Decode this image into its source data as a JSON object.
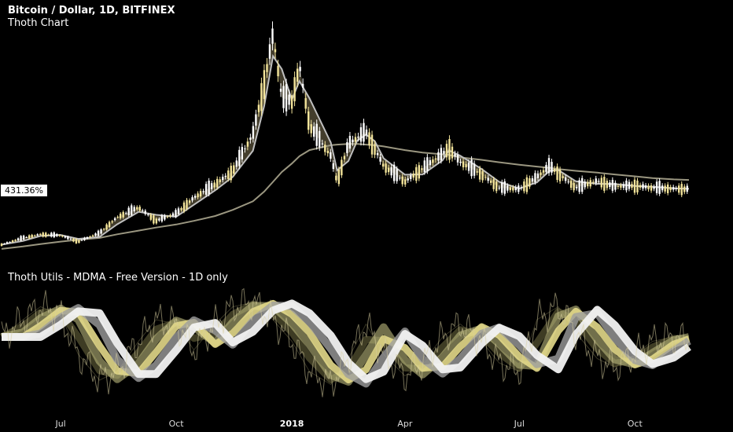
{
  "header": {
    "title": "Bitcoin / Dollar, 1D, BITFINEX",
    "subtitle": "Thoth Chart"
  },
  "indicator": {
    "title": "Thoth Utils - MDMA - Free Version - 1D only"
  },
  "price_label": "431.36%",
  "chart_data": [
    {
      "type": "line",
      "title": "Bitcoin / Dollar, 1D, BITFINEX",
      "subtitle": "Thoth Chart",
      "x": [
        "2017-05-15",
        "2017-06-01",
        "2017-06-15",
        "2017-07-01",
        "2017-07-15",
        "2017-08-01",
        "2017-08-15",
        "2017-09-01",
        "2017-09-15",
        "2017-10-01",
        "2017-10-15",
        "2017-11-01",
        "2017-11-15",
        "2017-12-01",
        "2017-12-10",
        "2017-12-17",
        "2017-12-24",
        "2018-01-01",
        "2018-01-07",
        "2018-01-15",
        "2018-02-01",
        "2018-02-06",
        "2018-02-15",
        "2018-02-22",
        "2018-03-01",
        "2018-03-08",
        "2018-03-15",
        "2018-04-01",
        "2018-04-15",
        "2018-05-01",
        "2018-05-06",
        "2018-05-15",
        "2018-06-01",
        "2018-06-15",
        "2018-07-01",
        "2018-07-15",
        "2018-07-25",
        "2018-08-01",
        "2018-08-15",
        "2018-09-01",
        "2018-09-15",
        "2018-10-01",
        "2018-10-15",
        "2018-11-01",
        "2018-11-13"
      ],
      "series": [
        {
          "name": "",
          "values": [
            1750,
            2300,
            2600,
            2500,
            2000,
            2700,
            4000,
            4800,
            3700,
            4300,
            5600,
            6700,
            7800,
            10800,
            15000,
            19000,
            13800,
            13500,
            16500,
            11500,
            9000,
            6900,
            10000,
            10500,
            11000,
            9600,
            8200,
            6900,
            8000,
            9200,
            9700,
            8500,
            7500,
            6400,
            6300,
            7300,
            8200,
            7600,
            6400,
            7000,
            6500,
            6600,
            6400,
            6350,
            6300
          ]
        },
        {
          "name": "",
          "values": [
            1400,
            1600,
            1800,
            2000,
            2150,
            2300,
            2600,
            2900,
            3150,
            3400,
            3700,
            4100,
            4600,
            5300,
            6100,
            6900,
            7700,
            8400,
            9000,
            9500,
            9900,
            9950,
            10000,
            10000,
            9950,
            9900,
            9800,
            9500,
            9300,
            9150,
            9100,
            8900,
            8700,
            8500,
            8300,
            8150,
            8050,
            7950,
            7800,
            7650,
            7500,
            7350,
            7200,
            7100,
            7050
          ]
        }
      ],
      "ylabel": "",
      "xlabel": ""
    },
    {
      "type": "area",
      "title": "Thoth Utils - MDMA - Free Version - 1D only",
      "x": [
        "2017-05-15",
        "2017-06-01",
        "2017-06-15",
        "2017-07-01",
        "2017-07-15",
        "2017-08-01",
        "2017-08-15",
        "2017-09-01",
        "2017-09-15",
        "2017-10-01",
        "2017-10-15",
        "2017-11-01",
        "2017-11-15",
        "2017-12-01",
        "2017-12-17",
        "2018-01-01",
        "2018-01-15",
        "2018-02-01",
        "2018-02-15",
        "2018-03-01",
        "2018-03-15",
        "2018-04-01",
        "2018-04-15",
        "2018-05-01",
        "2018-05-15",
        "2018-06-01",
        "2018-06-15",
        "2018-07-01",
        "2018-07-15",
        "2018-08-01",
        "2018-08-15",
        "2018-09-01",
        "2018-09-15",
        "2018-10-01",
        "2018-10-15",
        "2018-11-01",
        "2018-11-13"
      ],
      "series": [
        {
          "name": "",
          "values": [
            0.2,
            0.6,
            0.9,
            0.7,
            -0.2,
            -0.8,
            -0.6,
            0.1,
            0.6,
            0.5,
            -0.1,
            0.5,
            0.9,
            1.0,
            0.6,
            0.1,
            -0.6,
            -0.9,
            -0.3,
            0.5,
            -0.2,
            -0.7,
            -0.4,
            0.2,
            0.5,
            0.1,
            -0.4,
            -0.6,
            0.6,
            0.9,
            0.3,
            -0.3,
            -0.5,
            -0.2,
            0.1,
            0.2,
            0.1
          ]
        }
      ],
      "xticks": [
        "Jul",
        "Oct",
        "2018",
        "Apr",
        "Jul",
        "Oct"
      ]
    }
  ]
}
